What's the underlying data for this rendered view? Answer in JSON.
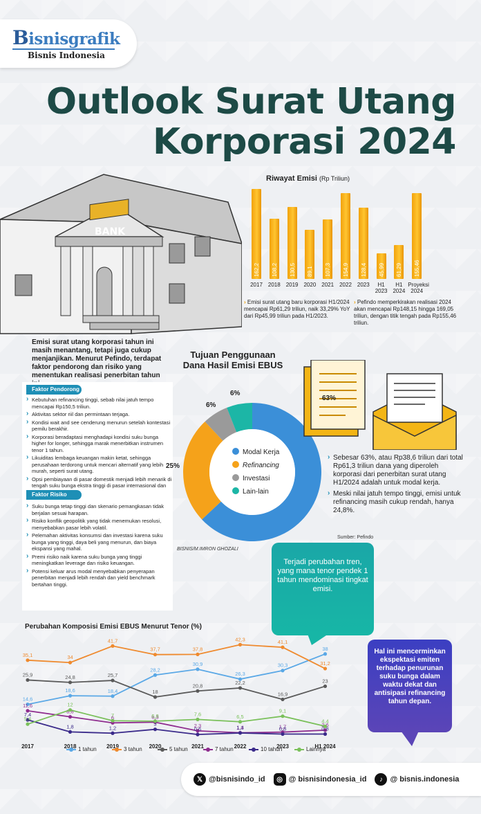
{
  "brand": {
    "logo_b": "B",
    "logo_rest": "isnisgrafik",
    "sub": "Bisnis Indonesia"
  },
  "title": {
    "line1": "Outlook Surat Utang",
    "line2": "Korporasi 2024"
  },
  "building": {
    "sign": "BANK"
  },
  "colors": {
    "accent_dark": "#1d4a46",
    "bar": "#f7b318",
    "teal": "#1e8fb6"
  },
  "bar_chart": {
    "title": "Riwayat Emisi",
    "unit": "(Rp Triliun)",
    "notes": [
      "Emisi surat utang baru korporasi H1/2024 mencapai Rp61,29 triliun, naik 33,29% YoY dari Rp45,99 triliun pada H1/2023.",
      "Pefindo memperkirakan realisasi 2024 akan mencapai Rp148,15 hingga 169,05 triliun, dengan titik tengah pada Rp155,46 triliun."
    ]
  },
  "intro": "Emisi surat utang korporasi tahun ini masih menantang, tetapi juga cukup menjanjikan. Menurut Pefindo, terdapat faktor pendorong dan risiko yang menentukan realisasi penerbitan tahun ini.",
  "faktor_pendorong": {
    "label": "Faktor Pendorong",
    "items": [
      "Kebutuhan refinancing tinggi, sebab nilai jatuh tempo mencapai Rp150,5 triliun.",
      "Aktivitas sektor riil dan permintaan terjaga.",
      "Kondisi wait and see cenderung menurun setelah kontestasi pemilu berakhir.",
      "Korporasi beradaptasi menghadapi kondisi suku bunga higher for longer, sehingga marak menerbitkan instrumen tenor 1 tahun.",
      "Likuiditas lembaga keuangan makin ketat, sehingga perusahaan terdorong untuk mencari alternatif yang lebih murah, seperti surat utang.",
      "Opsi pembiayaan di pasar domestik menjadi lebih menarik di tengah suku bunga ekstra tinggi di pasar internasional dan tekanan kurs."
    ]
  },
  "faktor_risiko": {
    "label": "Faktor Risiko",
    "items": [
      "Suku bunga tetap tinggi dan skenario pemangkasan tidak berjalan sesuai harapan.",
      "Risiko konflik geopolitik yang tidak menemukan resolusi, menyebabkan pasar lebih volatil.",
      "Pelemahan aktivitas konsumsi dan investasi karena suku bunga yang tinggi, daya beli yang menurun, dan biaya ekspansi yang mahal.",
      "Premi risiko naik karena suku bunga yang tinggi meningkatkan leverage dan risiko keuangan.",
      "Potensi keluar arus modal menyebabkan penyerapan penerbitan menjadi lebih rendah dan yield benchmark bertahan tinggi."
    ]
  },
  "donut": {
    "title_line1": "Tujuan Penggunaan",
    "title_line2": "Dana Hasil Emisi EBUS",
    "credit": "BISNIS/M.IMRON GHOZALI"
  },
  "right_notes": [
    "Sebesar 63%, atau Rp38,6 triliun dari total Rp61,3 triliun dana yang diperoleh korporasi dari penerbitan surat utang H1/2024 adalah untuk modal kerja.",
    "Meski nilai jatuh tempo tinggi, emisi untuk refinancing masih cukup rendah, hanya 24,8%."
  ],
  "source": "Sumber: Pefindo",
  "callout1": "Terjadi perubahan tren, yang mana tenor pendek 1 tahun mendominasi tingkat emisi.",
  "callout2": "Hal ini mencerminkan ekspektasi emiten terhadap penurunan suku bunga dalam waktu dekat dan antisipasi refinancing tahun depan.",
  "line_chart": {
    "title": "Perubahan Komposisi Emisi EBUS Menurut Tenor (%)"
  },
  "footer": {
    "x": "@bisnisindo_id",
    "ig": "@ bisnisindonesia_id",
    "tiktok": "@ bisnis.indonesia"
  },
  "chart_data": [
    {
      "type": "bar",
      "title": "Riwayat Emisi",
      "ylabel": "(Rp Triliun)",
      "categories": [
        "2017",
        "2018",
        "2019",
        "2020",
        "2021",
        "2022",
        "2023",
        "H1 2023",
        "H1 2024",
        "Proyeksi 2024"
      ],
      "values": [
        162.2,
        108.2,
        130.5,
        89.1,
        107.3,
        154.9,
        128.4,
        45.99,
        61.29,
        155.46
      ],
      "value_labels": [
        "162,2",
        "108,2",
        "130,5",
        "89,1",
        "107,3",
        "154,9",
        "128,4",
        "45,99",
        "61,29",
        "155,46"
      ],
      "ylim": [
        0,
        170
      ]
    },
    {
      "type": "pie",
      "title": "Tujuan Penggunaan Dana Hasil Emisi EBUS",
      "series": [
        {
          "name": "Modal Kerja",
          "value": 63,
          "label": "63%",
          "color": "#3b8fd8"
        },
        {
          "name": "Refinancing",
          "value": 25,
          "label": "25%",
          "color": "#f5a21a"
        },
        {
          "name": "Investasi",
          "value": 6,
          "label": "6%",
          "color": "#9a9a9a"
        },
        {
          "name": "Lain-lain",
          "value": 6,
          "label": "6%",
          "color": "#1cb6a6"
        }
      ]
    },
    {
      "type": "line",
      "title": "Perubahan Komposisi Emisi EBUS Menurut Tenor (%)",
      "categories": [
        "2017",
        "2018",
        "2019",
        "2020",
        "2021",
        "2022",
        "2023",
        "H1 2024"
      ],
      "ylim": [
        0,
        45
      ],
      "series": [
        {
          "name": "1 tahun",
          "color": "#5aa8e6",
          "values": [
            14.6,
            18.6,
            18.4,
            28.2,
            30.9,
            26.3,
            30.3,
            38
          ],
          "labels": [
            "14,6",
            "18,6",
            "18,4",
            "28,2",
            "30,9",
            "26,3",
            "30,3",
            "38"
          ]
        },
        {
          "name": "3 tahun",
          "color": "#ef8a2e",
          "values": [
            35.1,
            34,
            41.7,
            37.7,
            37.8,
            42.3,
            41.1,
            31.2
          ],
          "labels": [
            "35,1",
            "34",
            "41,7",
            "37,7",
            "37,8",
            "42,3",
            "41,1",
            "31,2"
          ]
        },
        {
          "name": "5 tahun",
          "color": "#5a5a5a",
          "values": [
            25.9,
            24.8,
            25.7,
            18,
            20.8,
            22.2,
            16.9,
            23
          ],
          "labels": [
            "25,9",
            "24,8",
            "25,7",
            "18",
            "20,8",
            "22,2",
            "16,9",
            "23"
          ]
        },
        {
          "name": "7 tahun",
          "color": "#8e2c8e",
          "values": [
            11.6,
            8.8,
            6,
            6.3,
            2.3,
            1.4,
            1.7,
            2.6
          ],
          "labels": [
            "11,6",
            "8,8",
            "6",
            "6,3",
            "2,3",
            "1,4",
            "1,7",
            "2,6"
          ]
        },
        {
          "name": "10 tahun",
          "color": "#3a2a8a",
          "values": [
            7.4,
            1.8,
            1.2,
            3,
            0.6,
            1.3,
            0.8,
            0.8
          ],
          "labels": [
            "7,4",
            "1,8",
            "1,2",
            "3",
            "0,6",
            "1,3",
            "0,8",
            "0,8"
          ]
        },
        {
          "name": "Lainnya",
          "color": "#7ac05a",
          "values": [
            5.4,
            12,
            7,
            6.8,
            7.6,
            6.5,
            9.1,
            4.4
          ],
          "labels": [
            "5,4",
            "12",
            "7",
            "6,8",
            "7,6",
            "6,5",
            "9,1",
            "4,4"
          ]
        }
      ]
    }
  ]
}
